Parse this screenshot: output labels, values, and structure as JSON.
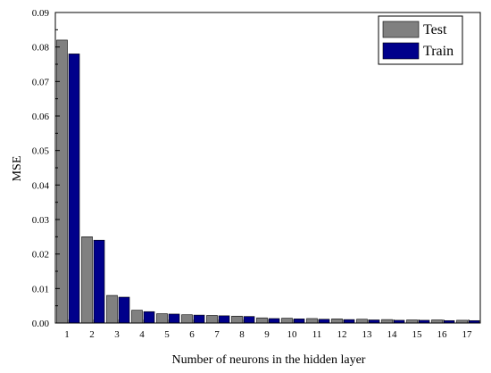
{
  "chart_data": {
    "type": "bar",
    "title": "",
    "xlabel": "Number of neurons in the hidden layer",
    "ylabel": "MSE",
    "categories": [
      "1",
      "2",
      "3",
      "4",
      "5",
      "6",
      "7",
      "8",
      "9",
      "10",
      "11",
      "12",
      "13",
      "14",
      "15",
      "16",
      "17"
    ],
    "series": [
      {
        "name": "Test",
        "color": "#808080",
        "values": [
          0.082,
          0.025,
          0.008,
          0.0037,
          0.0027,
          0.0024,
          0.0022,
          0.002,
          0.0015,
          0.0014,
          0.0013,
          0.0012,
          0.0011,
          0.001,
          0.0009,
          0.0009,
          0.0008
        ]
      },
      {
        "name": "Train",
        "color": "#00008B",
        "values": [
          0.078,
          0.024,
          0.0075,
          0.0033,
          0.0026,
          0.0023,
          0.0021,
          0.0019,
          0.0013,
          0.0012,
          0.0011,
          0.001,
          0.0009,
          0.0008,
          0.0008,
          0.0007,
          0.0007
        ]
      }
    ],
    "ylim": [
      0,
      0.09
    ],
    "yticks": [
      0.0,
      0.01,
      0.02,
      0.03,
      0.04,
      0.05,
      0.06,
      0.07,
      0.08,
      0.09
    ],
    "ytick_labels": [
      "0.00",
      "0.01",
      "0.02",
      "0.03",
      "0.04",
      "0.05",
      "0.06",
      "0.07",
      "0.08",
      "0.09"
    ],
    "grid": false,
    "legend_position": "top-right"
  }
}
